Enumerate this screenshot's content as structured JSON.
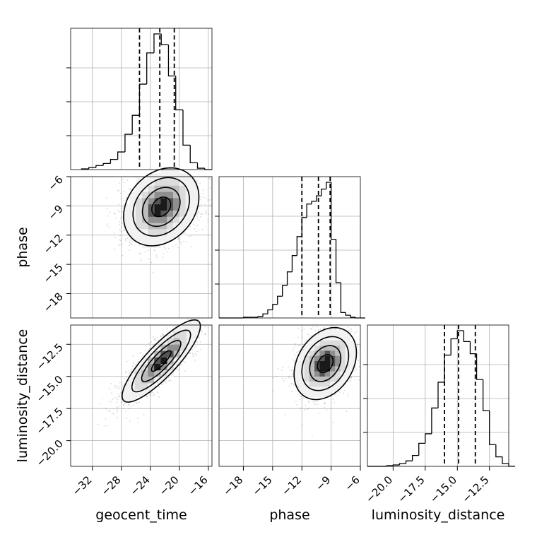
{
  "chart_data": {
    "type": "corner",
    "parameters": [
      "geocent_time",
      "phase",
      "luminosity_distance"
    ],
    "medians": [
      -22.7,
      -10.3,
      -14.9
    ],
    "quantiles_1sigma": [
      [
        -25.5,
        -20.7
      ],
      [
        -12.0,
        -9.1
      ],
      [
        -16.0,
        -13.6
      ]
    ],
    "ranges": [
      [
        -35.0,
        -15.5
      ],
      [
        -20.5,
        -6.0
      ],
      [
        -22.0,
        -11.0
      ]
    ],
    "ticks": {
      "geocent_time": [
        -32,
        -28,
        -24,
        -20,
        -16
      ],
      "phase_y": [
        -6,
        -9,
        -12,
        -15,
        -18
      ],
      "phase_x": [
        -18,
        -15,
        -12,
        -9,
        -6
      ],
      "luminosity_distance_y": [
        -12.5,
        -15.0,
        -17.5,
        -20.0
      ],
      "luminosity_distance_x": [
        -20.0,
        -17.5,
        -15.0,
        -12.5
      ]
    },
    "tick_labels": {
      "geocent_time": [
        "−32",
        "−28",
        "−24",
        "−20",
        "−16"
      ],
      "phase_y": [
        "−6",
        "−9",
        "−12",
        "−15",
        "−18"
      ],
      "phase_x": [
        "−18",
        "−15",
        "−12",
        "−9",
        "−6"
      ],
      "luminosity_distance_y": [
        "−12.5",
        "−15.0",
        "−17.5",
        "−20.0"
      ],
      "luminosity_distance_x": [
        "−20.0",
        "−17.5",
        "−15.0",
        "−12.5"
      ]
    },
    "histograms": {
      "geocent_time": {
        "bins": [
          -33.5,
          -32.5,
          -31.5,
          -30.5,
          -29.5,
          -28.5,
          -27.5,
          -26.5,
          -25.5,
          -24.5,
          -23.5,
          -22.5,
          -21.5,
          -20.5,
          -19.5,
          -18.5,
          -17.5,
          -16.5
        ],
        "counts": [
          0.005,
          0.015,
          0.03,
          0.045,
          0.075,
          0.13,
          0.26,
          0.4,
          0.63,
          0.86,
          1.0,
          0.92,
          0.69,
          0.44,
          0.18,
          0.05,
          0.01,
          0.0
        ]
      },
      "phase": {
        "bins": [
          -20.5,
          -20.0,
          -19.5,
          -19.0,
          -18.5,
          -18.0,
          -17.5,
          -17.0,
          -16.5,
          -16.0,
          -15.5,
          -15.0,
          -14.5,
          -14.0,
          -13.5,
          -13.0,
          -12.5,
          -12.0,
          -11.5,
          -11.0,
          -10.5,
          -10.0,
          -9.5,
          -9.0,
          -8.5,
          -8.0,
          -7.5,
          -7.0,
          -6.5,
          -6.0
        ],
        "counts": [
          0.0,
          0.0,
          0.0,
          0.0,
          0.0,
          0.005,
          0.005,
          0.005,
          0.01,
          0.03,
          0.06,
          0.1,
          0.16,
          0.24,
          0.34,
          0.46,
          0.6,
          0.74,
          0.84,
          0.86,
          0.9,
          0.95,
          1.0,
          0.58,
          0.26,
          0.04,
          0.02,
          0.005,
          0.0,
          0.0
        ]
      },
      "luminosity_distance": {
        "bins": [
          -22.0,
          -21.5,
          -21.0,
          -20.5,
          -20.0,
          -19.5,
          -19.0,
          -18.5,
          -18.0,
          -17.5,
          -17.0,
          -16.5,
          -16.0,
          -15.5,
          -15.0,
          -14.5,
          -14.0,
          -13.5,
          -13.0,
          -12.5,
          -12.0,
          -11.5,
          -11.0
        ],
        "counts": [
          0.0,
          0.0,
          0.0,
          0.005,
          0.01,
          0.02,
          0.04,
          0.08,
          0.17,
          0.24,
          0.43,
          0.62,
          0.82,
          0.94,
          1.0,
          0.92,
          0.83,
          0.64,
          0.41,
          0.16,
          0.07,
          0.02,
          0.0
        ]
      }
    },
    "contours": {
      "geocent_time__phase": {
        "center": [
          -22.5,
          -9.1
        ],
        "sigma": [
          2.6,
          2.0
        ],
        "rho": 0.25
      },
      "geocent_time__luminosity_distance": {
        "center": [
          -22.5,
          -13.8
        ],
        "sigma": [
          2.7,
          1.6
        ],
        "rho": 0.85
      },
      "phase__luminosity_distance": {
        "center": [
          -9.6,
          -14.0
        ],
        "sigma": [
          1.6,
          1.4
        ],
        "rho": 0.3
      }
    },
    "xlabels": [
      "geocent_time",
      "phase",
      "luminosity_distance"
    ],
    "ylabels": [
      "phase",
      "luminosity_distance"
    ],
    "grid": true,
    "quantile_line_style": "dashed"
  }
}
